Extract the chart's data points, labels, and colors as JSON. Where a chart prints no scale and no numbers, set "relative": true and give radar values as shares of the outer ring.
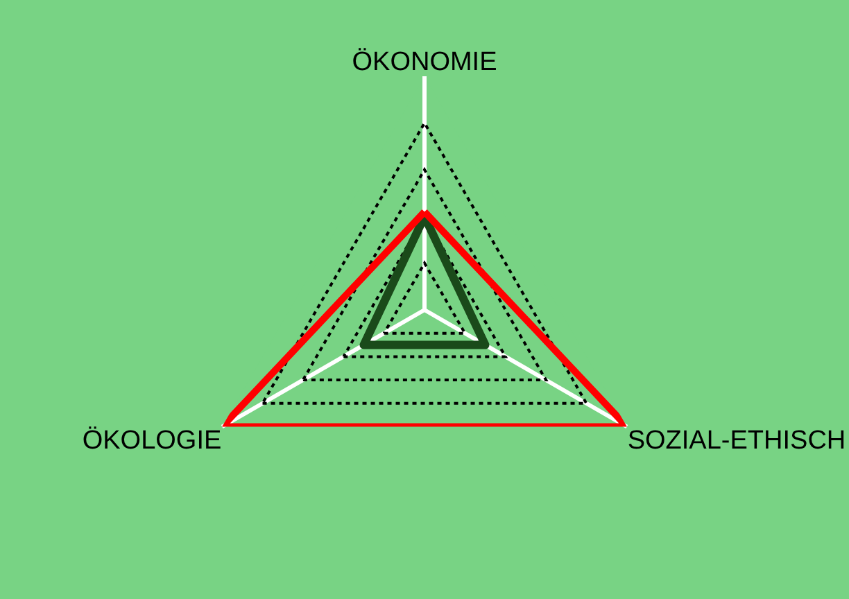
{
  "chart_data": {
    "type": "radar",
    "relative": true,
    "grid": true,
    "categories": [
      "ÖKONOMIE",
      "SOZIAL-ETHISCH",
      "ÖKOLOGIE"
    ],
    "series": [
      {
        "color": "#1a4a1a",
        "values": [
          0.4,
          0.3,
          0.3
        ]
      },
      {
        "color": "#ff0000",
        "values": [
          0.42,
          1.0,
          1.0
        ]
      }
    ]
  }
}
